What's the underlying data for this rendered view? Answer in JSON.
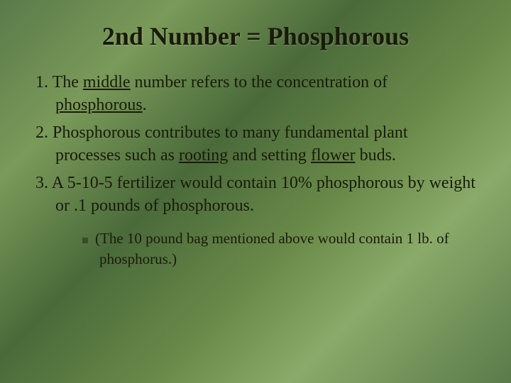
{
  "slide": {
    "title": "2nd Number = Phosphorous",
    "items": [
      {
        "num": "1.",
        "pre": "The ",
        "u1": "middle",
        "mid1": " number refers to the concentration of ",
        "u2": "phosphorous",
        "post": "."
      },
      {
        "num": "2.",
        "pre": "Phosphorous contributes to many fundamental plant processes such as ",
        "u1": "rooting",
        "mid1": " and setting ",
        "u2": "flower",
        "post": " buds."
      },
      {
        "num": "3.",
        "pre": "A 5-10-5 fertilizer would contain 10% phosphorous by weight or .1 pounds of phosphorous.",
        "u1": "",
        "mid1": "",
        "u2": "",
        "post": ""
      }
    ],
    "subitem": "(The 10 pound bag mentioned above would contain 1 lb. of phosphorus.)"
  },
  "style": {
    "background_colors": [
      "#5a7a4a",
      "#7a9a5a",
      "#4a6a3a",
      "#6a8a4a",
      "#8aaa6a"
    ],
    "title_fontsize": 36,
    "body_fontsize": 24,
    "sub_fontsize": 21,
    "text_color": "#1a1a0a",
    "bullet_color": "#3a4a2a",
    "font_family": "Georgia, Times New Roman, serif"
  }
}
